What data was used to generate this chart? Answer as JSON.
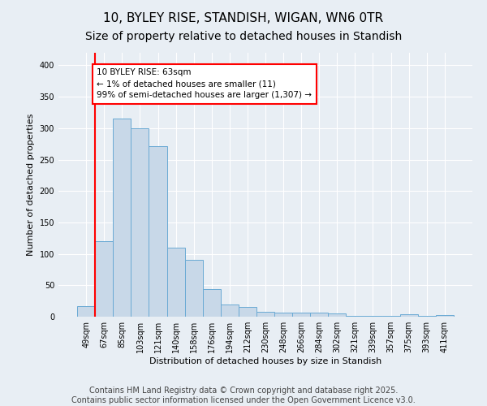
{
  "title": "10, BYLEY RISE, STANDISH, WIGAN, WN6 0TR",
  "subtitle": "Size of property relative to detached houses in Standish",
  "xlabel": "Distribution of detached houses by size in Standish",
  "ylabel": "Number of detached properties",
  "categories": [
    "49sqm",
    "67sqm",
    "85sqm",
    "103sqm",
    "121sqm",
    "140sqm",
    "158sqm",
    "176sqm",
    "194sqm",
    "212sqm",
    "230sqm",
    "248sqm",
    "266sqm",
    "284sqm",
    "302sqm",
    "321sqm",
    "339sqm",
    "357sqm",
    "375sqm",
    "393sqm",
    "411sqm"
  ],
  "values": [
    17,
    120,
    315,
    300,
    272,
    110,
    90,
    44,
    19,
    15,
    8,
    7,
    7,
    6,
    5,
    1,
    1,
    1,
    4,
    1,
    2
  ],
  "bar_color": "#c8d8e8",
  "bar_edge_color": "#6aaad4",
  "annotation_box_text": "10 BYLEY RISE: 63sqm\n← 1% of detached houses are smaller (11)\n99% of semi-detached houses are larger (1,307) →",
  "annotation_box_color": "white",
  "annotation_box_edge_color": "red",
  "vline_color": "red",
  "vline_x": 0.5,
  "ylim": [
    0,
    420
  ],
  "yticks": [
    0,
    50,
    100,
    150,
    200,
    250,
    300,
    350,
    400
  ],
  "background_color": "#e8eef4",
  "footer_line1": "Contains HM Land Registry data © Crown copyright and database right 2025.",
  "footer_line2": "Contains public sector information licensed under the Open Government Licence v3.0.",
  "title_fontsize": 11,
  "subtitle_fontsize": 10,
  "axis_fontsize": 8,
  "tick_fontsize": 7,
  "footer_fontsize": 7,
  "annot_fontsize": 7.5
}
